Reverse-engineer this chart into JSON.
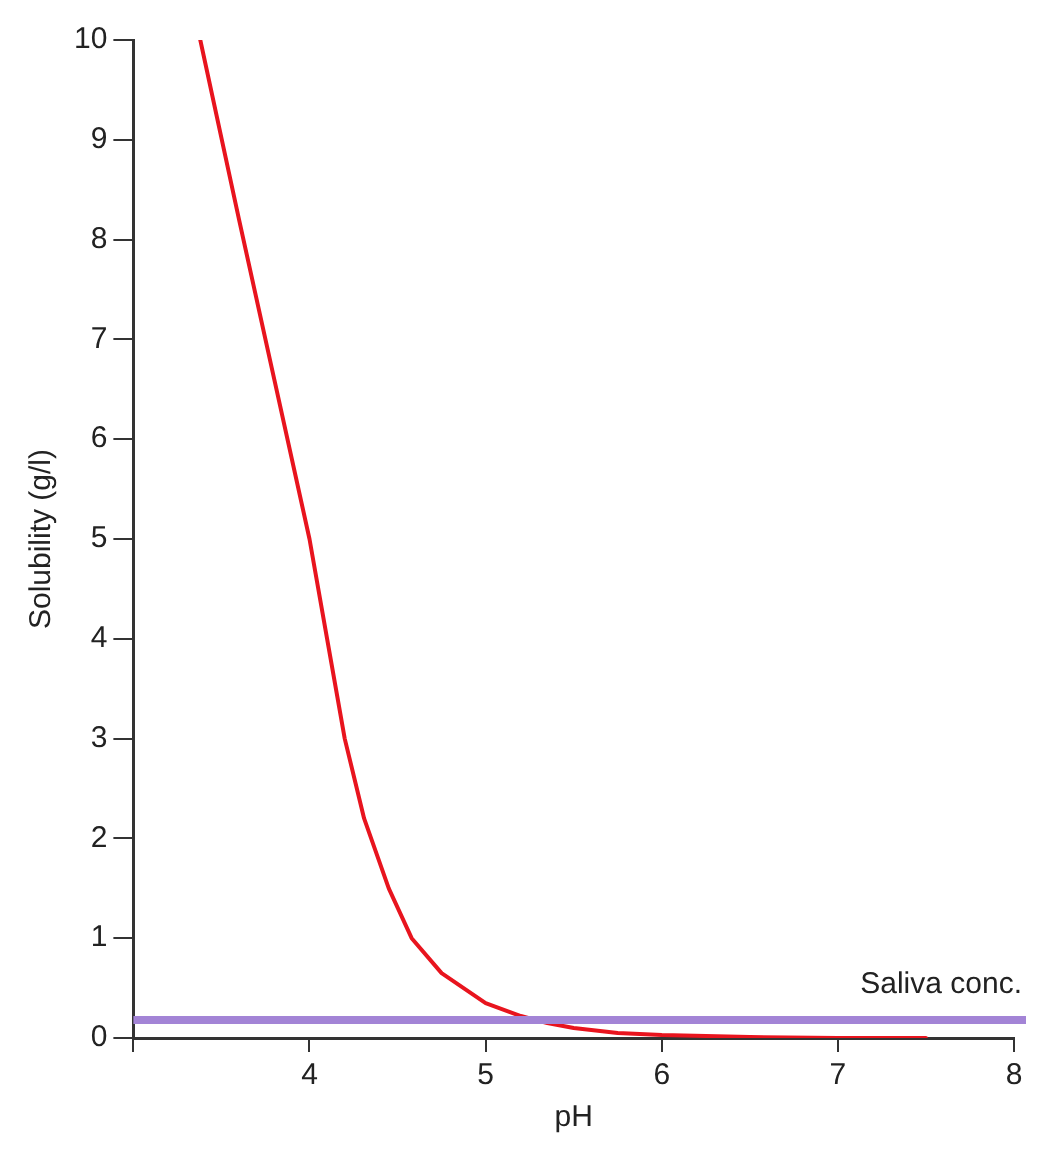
{
  "chart_data": {
    "type": "line",
    "xlabel": "pH",
    "ylabel": "Solubility (g/l)",
    "series": [
      {
        "color": "#e8141e",
        "x": [
          3.38,
          3.6,
          3.8,
          4.0,
          4.1,
          4.2,
          4.31,
          4.45,
          4.58,
          4.75,
          5.0,
          5.2,
          5.35,
          5.5,
          5.75,
          6.0,
          6.5,
          7.0,
          7.5
        ],
        "values": [
          10,
          8.2,
          6.6,
          5.0,
          4.0,
          3.0,
          2.2,
          1.5,
          1.0,
          0.65,
          0.35,
          0.22,
          0.15,
          0.1,
          0.05,
          0.03,
          0.01,
          0.0,
          0.0
        ]
      }
    ],
    "xlim": [
      3,
      8
    ],
    "xticks": [
      {
        "value": 3,
        "label": null
      },
      4,
      5,
      6,
      7,
      8
    ],
    "ylim": [
      0,
      10
    ],
    "yticks": [
      0,
      1,
      2,
      3,
      4,
      5,
      6,
      7,
      8,
      9,
      10
    ],
    "ref_lines": [
      {
        "axis": "y",
        "value": 0.18,
        "label": "Saliva conc.",
        "color": "#a384d6"
      }
    ],
    "grid": false,
    "legend": false,
    "marker": "none",
    "line_style": "solid"
  }
}
